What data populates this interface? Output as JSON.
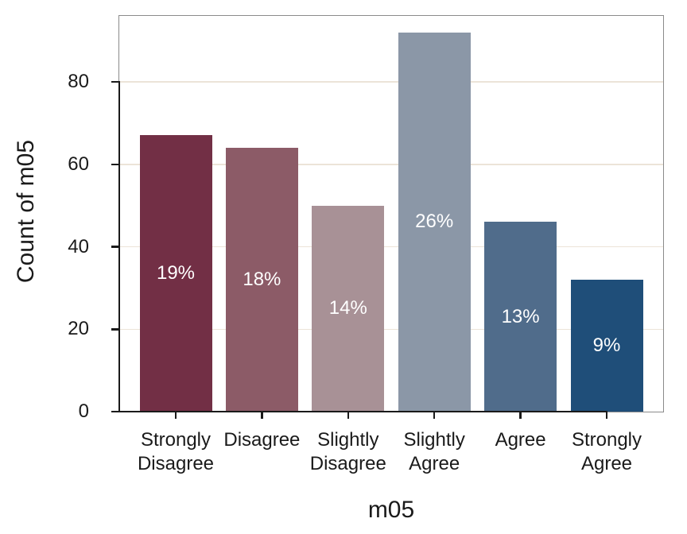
{
  "chart_data": {
    "type": "bar",
    "title": "",
    "xlabel": "m05",
    "ylabel": "Count of m05",
    "categories": [
      "Strongly Disagree",
      "Disagree",
      "Slightly Disagree",
      "Slightly Agree",
      "Agree",
      "Strongly Agree"
    ],
    "x_tick_labels": [
      "Strongly\nDisagree",
      "Disagree",
      "Slightly\nDisagree",
      "Slightly\nAgree",
      "Agree",
      "Strongly\nAgree"
    ],
    "values": [
      67,
      64,
      50,
      92,
      46,
      32
    ],
    "bar_labels": [
      "19%",
      "18%",
      "14%",
      "26%",
      "13%",
      "9%"
    ],
    "bar_colors": [
      "#722F45",
      "#8C5B67",
      "#A89196",
      "#8B97A7",
      "#506C8B",
      "#1F4E79"
    ],
    "y_ticks": [
      0,
      20,
      40,
      60,
      80
    ],
    "ylim": [
      0,
      96
    ],
    "grid": "horizontal",
    "legend": "none",
    "colors": {
      "background": "#FFFFFF",
      "gridline": "#ECE4D8",
      "panel_border": "#8B8B8B",
      "axis_spine": "#1A1A1A",
      "axis_text": "#1A1A1A",
      "bar_label_text": "#FFFFFF"
    }
  }
}
